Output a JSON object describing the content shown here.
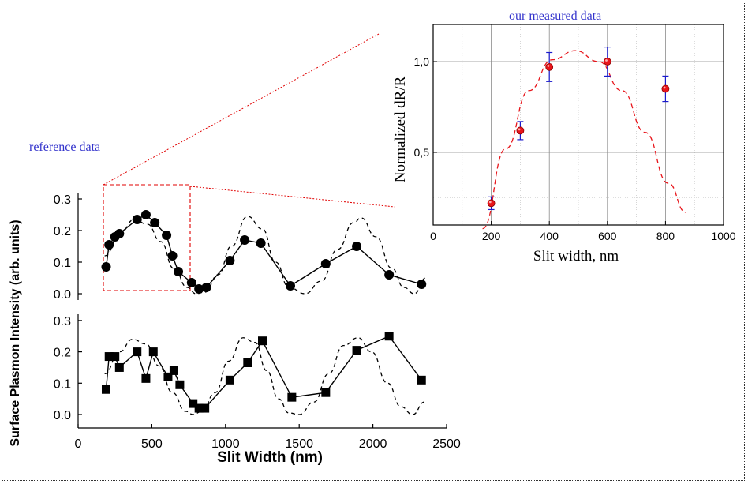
{
  "colors": {
    "annotation_text": "#3333cc",
    "reference_marker": "#000000",
    "measured_marker": "#e8151b",
    "errorbar": "#1a1acc",
    "fit_line": "#e8151b",
    "guide": "#e00000",
    "grid": "#8a8a8a"
  },
  "labels": {
    "reference": "reference data",
    "measured": "our measured data"
  },
  "chart_data": [
    {
      "id": "top",
      "type": "line",
      "title": "",
      "xlabel": "",
      "ylabel": "Surface Plasmon Intensity (arb. units)",
      "xlim": [
        0,
        2550
      ],
      "ylim": [
        -0.02,
        0.31
      ],
      "yticks": [
        0.0,
        0.1,
        0.2,
        0.3
      ],
      "ytick_labels": [
        "0.0",
        "0.1",
        "0.2",
        "0.3"
      ],
      "grid": false,
      "marker": "circle",
      "series": [
        {
          "x": [
            190,
            210,
            250,
            280,
            400,
            460,
            520,
            600,
            640,
            680,
            770,
            820,
            870,
            1030,
            1130,
            1240,
            1440,
            1680,
            1890,
            2110,
            2330
          ],
          "values": [
            0.085,
            0.155,
            0.18,
            0.19,
            0.235,
            0.25,
            0.225,
            0.185,
            0.12,
            0.07,
            0.035,
            0.015,
            0.02,
            0.105,
            0.17,
            0.16,
            0.025,
            0.095,
            0.15,
            0.06,
            0.03
          ]
        }
      ],
      "theory": {
        "style": "dashed",
        "x": [
          180,
          290,
          380,
          470,
          560,
          650,
          740,
          800,
          860,
          950,
          1040,
          1150,
          1250,
          1340,
          1430,
          1540,
          1650,
          1760,
          1870,
          1920,
          2020,
          2130,
          2210,
          2280,
          2360
        ],
        "values": [
          0.12,
          0.195,
          0.235,
          0.22,
          0.165,
          0.08,
          0.02,
          0.0,
          0.005,
          0.06,
          0.15,
          0.245,
          0.205,
          0.1,
          0.02,
          0.0,
          0.04,
          0.14,
          0.225,
          0.24,
          0.18,
          0.08,
          0.02,
          0.0,
          0.05
        ]
      }
    },
    {
      "id": "bottom",
      "type": "line",
      "title": "",
      "xlabel": "Slit Width (nm)",
      "ylabel": "",
      "xlim": [
        0,
        2550
      ],
      "ylim": [
        -0.02,
        0.31
      ],
      "xticks": [
        0,
        500,
        1000,
        1500,
        2000,
        2500
      ],
      "xtick_labels": [
        "0",
        "500",
        "1000",
        "1500",
        "2000",
        "2500"
      ],
      "yticks": [
        0.0,
        0.1,
        0.2,
        0.3
      ],
      "ytick_labels": [
        "0.0",
        "0.1",
        "0.2",
        "0.3"
      ],
      "grid": false,
      "marker": "square",
      "series": [
        {
          "x": [
            190,
            210,
            250,
            280,
            400,
            460,
            510,
            610,
            650,
            690,
            780,
            820,
            860,
            1030,
            1150,
            1250,
            1450,
            1680,
            1890,
            2110,
            2330
          ],
          "values": [
            0.08,
            0.185,
            0.185,
            0.15,
            0.2,
            0.115,
            0.2,
            0.12,
            0.14,
            0.095,
            0.035,
            0.02,
            0.02,
            0.11,
            0.165,
            0.235,
            0.055,
            0.07,
            0.205,
            0.25,
            0.11
          ]
        }
      ],
      "theory": {
        "style": "dashed",
        "x": [
          180,
          280,
          370,
          460,
          550,
          640,
          730,
          780,
          840,
          930,
          1020,
          1120,
          1200,
          1280,
          1360,
          1430,
          1500,
          1600,
          1700,
          1800,
          1900,
          1990,
          2100,
          2190,
          2270,
          2350
        ],
        "values": [
          0.13,
          0.2,
          0.24,
          0.225,
          0.155,
          0.07,
          0.01,
          0.0,
          0.01,
          0.07,
          0.17,
          0.245,
          0.23,
          0.14,
          0.05,
          0.005,
          0.0,
          0.04,
          0.13,
          0.22,
          0.245,
          0.2,
          0.1,
          0.025,
          0.0,
          0.04
        ]
      }
    },
    {
      "id": "inset",
      "type": "scatter",
      "title": "our measured data",
      "xlabel": "Slit width, nm",
      "ylabel": "Normalized dR/R",
      "xlim": [
        0,
        1000
      ],
      "ylim": [
        0.1,
        1.2
      ],
      "xticks": [
        0,
        200,
        400,
        600,
        800,
        1000
      ],
      "xtick_labels": [
        "0",
        "200",
        "400",
        "600",
        "800",
        "1000"
      ],
      "yticks": [
        0.5,
        1.0
      ],
      "ytick_labels": [
        "0,5",
        "1,0"
      ],
      "grid": true,
      "series": [
        {
          "x": [
            200,
            300,
            400,
            600,
            800
          ],
          "values": [
            0.22,
            0.62,
            0.97,
            1.0,
            0.85
          ],
          "errors": [
            0.035,
            0.05,
            0.08,
            0.08,
            0.07
          ]
        }
      ],
      "fit": {
        "style": "dashed",
        "x": [
          170,
          250,
          330,
          410,
          490,
          570,
          650,
          730,
          810,
          870
        ],
        "values": [
          0.08,
          0.52,
          0.84,
          1.01,
          1.06,
          1.0,
          0.84,
          0.61,
          0.33,
          0.17
        ]
      }
    }
  ]
}
